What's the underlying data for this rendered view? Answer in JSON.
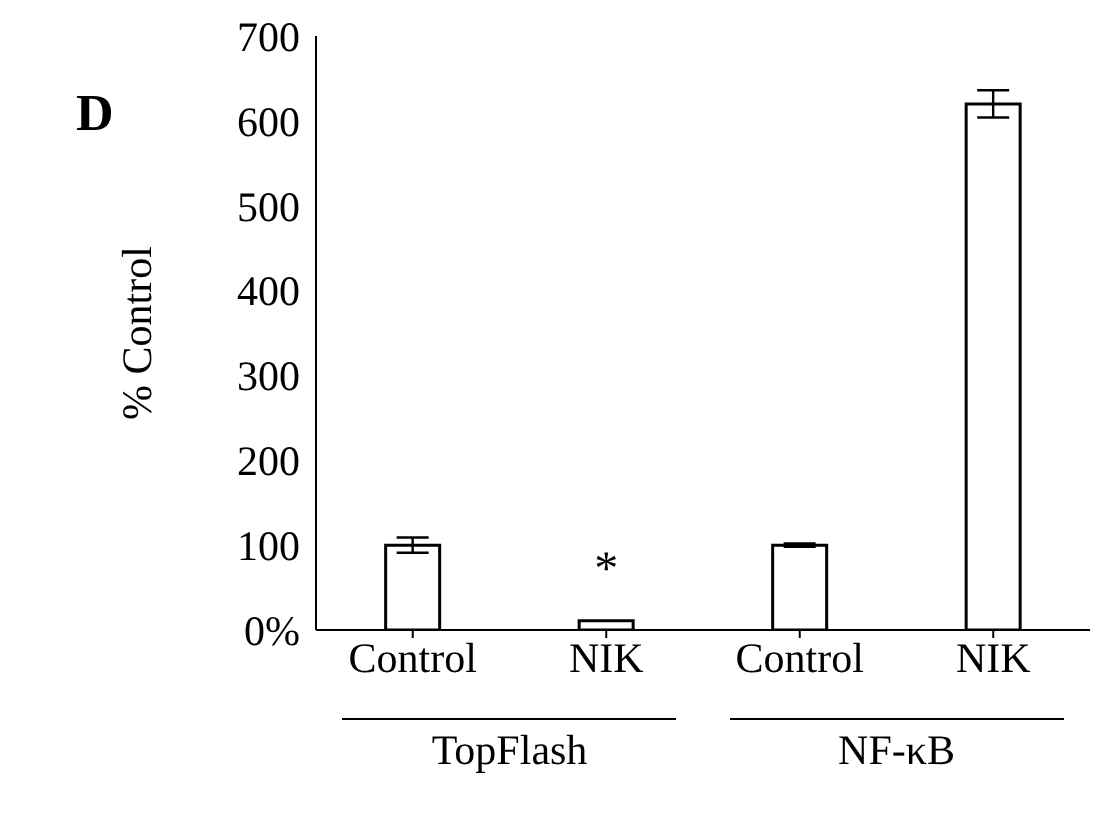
{
  "chart_data": {
    "type": "bar",
    "ylabel": "% Control",
    "categories": [
      "Control",
      "NIK",
      "Control",
      "NIK"
    ],
    "values": [
      100,
      11,
      100,
      620
    ],
    "errors": [
      9,
      null,
      2,
      16
    ],
    "color": "#ffffff",
    "ylim": [
      0,
      700
    ],
    "yticks": [
      {
        "value": 0,
        "label": "0%"
      },
      100,
      200,
      300,
      400,
      500,
      600,
      700
    ],
    "annotations": [
      "D",
      "*",
      "TopFlash",
      "NF-κB"
    ]
  }
}
